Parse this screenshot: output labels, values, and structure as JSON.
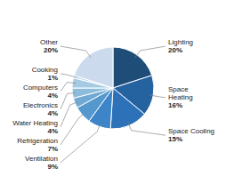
{
  "chart_data": {
    "type": "pie",
    "categories": [
      "Lighting",
      "Space\nHeating",
      "Space Cooling",
      "Ventilation",
      "Refrigeration",
      "Water Heating",
      "Electronics",
      "Computers",
      "Cooking",
      "Other"
    ],
    "values": [
      20,
      16,
      15,
      9,
      7,
      4,
      4,
      4,
      1,
      20
    ],
    "value_labels": [
      "20%",
      "16%",
      "15%",
      "9%",
      "7%",
      "4%",
      "4%",
      "4%",
      "1%",
      "20%"
    ],
    "colors": [
      "#1e4d78",
      "#2462a0",
      "#2d72b8",
      "#3d85c8",
      "#5598ce",
      "#70aad4",
      "#8bbddb",
      "#a5cbe3",
      "#c2d9ec",
      "#ccdaed"
    ],
    "data_labels": true
  }
}
